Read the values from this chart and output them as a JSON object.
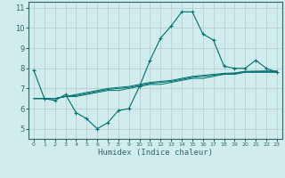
{
  "xlabel": "Humidex (Indice chaleur)",
  "x_values": [
    0,
    1,
    2,
    3,
    4,
    5,
    6,
    7,
    8,
    9,
    10,
    11,
    12,
    13,
    14,
    15,
    16,
    17,
    18,
    19,
    20,
    21,
    22,
    23
  ],
  "line1_y": [
    7.9,
    6.5,
    6.4,
    6.7,
    5.8,
    5.5,
    5.0,
    5.3,
    5.9,
    6.0,
    7.1,
    8.4,
    9.5,
    10.1,
    10.8,
    10.8,
    9.7,
    9.4,
    8.1,
    8.0,
    8.0,
    8.4,
    8.0,
    7.8
  ],
  "line2_y": [
    6.5,
    6.5,
    6.5,
    6.6,
    6.6,
    6.7,
    6.8,
    6.9,
    6.9,
    7.0,
    7.1,
    7.2,
    7.2,
    7.3,
    7.4,
    7.5,
    7.5,
    7.6,
    7.7,
    7.7,
    7.8,
    7.8,
    7.8,
    7.8
  ],
  "line3_y": [
    6.5,
    6.5,
    6.5,
    6.6,
    6.65,
    6.75,
    6.85,
    6.95,
    7.0,
    7.05,
    7.15,
    7.25,
    7.3,
    7.35,
    7.45,
    7.55,
    7.6,
    7.65,
    7.72,
    7.74,
    7.83,
    7.83,
    7.83,
    7.83
  ],
  "line4_y": [
    6.5,
    6.5,
    6.5,
    6.6,
    6.7,
    6.8,
    6.9,
    7.0,
    7.05,
    7.1,
    7.2,
    7.3,
    7.35,
    7.4,
    7.5,
    7.6,
    7.65,
    7.7,
    7.75,
    7.77,
    7.85,
    7.86,
    7.87,
    7.87
  ],
  "line_color": "#007070",
  "bg_color": "#d0ecec",
  "grid_color": "#b8c8cc",
  "axis_color": "#336666",
  "ylim": [
    4.5,
    11.3
  ],
  "xlim": [
    -0.5,
    23.5
  ],
  "yticks": [
    5,
    6,
    7,
    8,
    9,
    10,
    11
  ],
  "xticks": [
    0,
    1,
    2,
    3,
    4,
    5,
    6,
    7,
    8,
    9,
    10,
    11,
    12,
    13,
    14,
    15,
    16,
    17,
    18,
    19,
    20,
    21,
    22,
    23
  ]
}
